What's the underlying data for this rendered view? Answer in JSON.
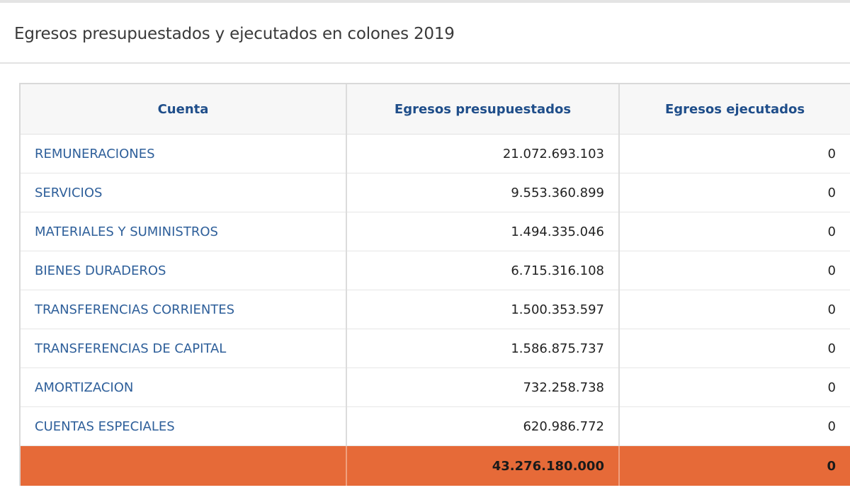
{
  "panel": {
    "title": "Egresos presupuestados y ejecutados en colones 2019"
  },
  "table": {
    "columns": [
      "Cuenta",
      "Egresos presupuestados",
      "Egresos ejecutados"
    ],
    "rows": [
      {
        "cuenta": "REMUNERACIONES",
        "presupuestados": "21.072.693.103",
        "ejecutados": "0"
      },
      {
        "cuenta": "SERVICIOS",
        "presupuestados": "9.553.360.899",
        "ejecutados": "0"
      },
      {
        "cuenta": "MATERIALES Y SUMINISTROS",
        "presupuestados": "1.494.335.046",
        "ejecutados": "0"
      },
      {
        "cuenta": "BIENES DURADEROS",
        "presupuestados": "6.715.316.108",
        "ejecutados": "0"
      },
      {
        "cuenta": "TRANSFERENCIAS CORRIENTES",
        "presupuestados": "1.500.353.597",
        "ejecutados": "0"
      },
      {
        "cuenta": "TRANSFERENCIAS DE CAPITAL",
        "presupuestados": "1.586.875.737",
        "ejecutados": "0"
      },
      {
        "cuenta": "AMORTIZACION",
        "presupuestados": "732.258.738",
        "ejecutados": "0"
      },
      {
        "cuenta": "CUENTAS ESPECIALES",
        "presupuestados": "620.986.772",
        "ejecutados": "0"
      }
    ],
    "total": {
      "cuenta": "",
      "presupuestados": "43.276.180.000",
      "ejecutados": "0"
    }
  },
  "colors": {
    "header_text": "#1f4e8a",
    "link_text": "#2e5f9a",
    "total_row_bg": "#e66a38"
  }
}
